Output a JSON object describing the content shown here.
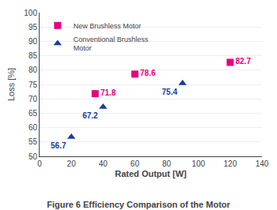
{
  "chart_data": {
    "type": "scatter",
    "title": "Figure 6 Efficiency Comparison of the Motor",
    "x_label": "Rated Output [W]",
    "y_label": "Loss [%]",
    "xlim": [
      0,
      140
    ],
    "ylim": [
      50,
      100
    ],
    "xticks": [
      0,
      20,
      40,
      60,
      80,
      100,
      120,
      140
    ],
    "yticks": [
      50,
      55,
      60,
      65,
      70,
      75,
      80,
      85,
      90,
      95,
      100
    ],
    "grid": "y",
    "legend": "upper left",
    "data_labels": true,
    "series": [
      {
        "name": "New Brushless Motor",
        "color": "#e8007f",
        "marker": "square",
        "x": [
          35,
          60,
          120
        ],
        "values": [
          71.8,
          78.6,
          82.7
        ]
      },
      {
        "name": "Conventional Brushless \nMotor",
        "color": "#1a3a9e",
        "marker": "triangle-up",
        "x": [
          20,
          40,
          90
        ],
        "values": [
          56.7,
          67.2,
          75.4
        ]
      }
    ]
  }
}
